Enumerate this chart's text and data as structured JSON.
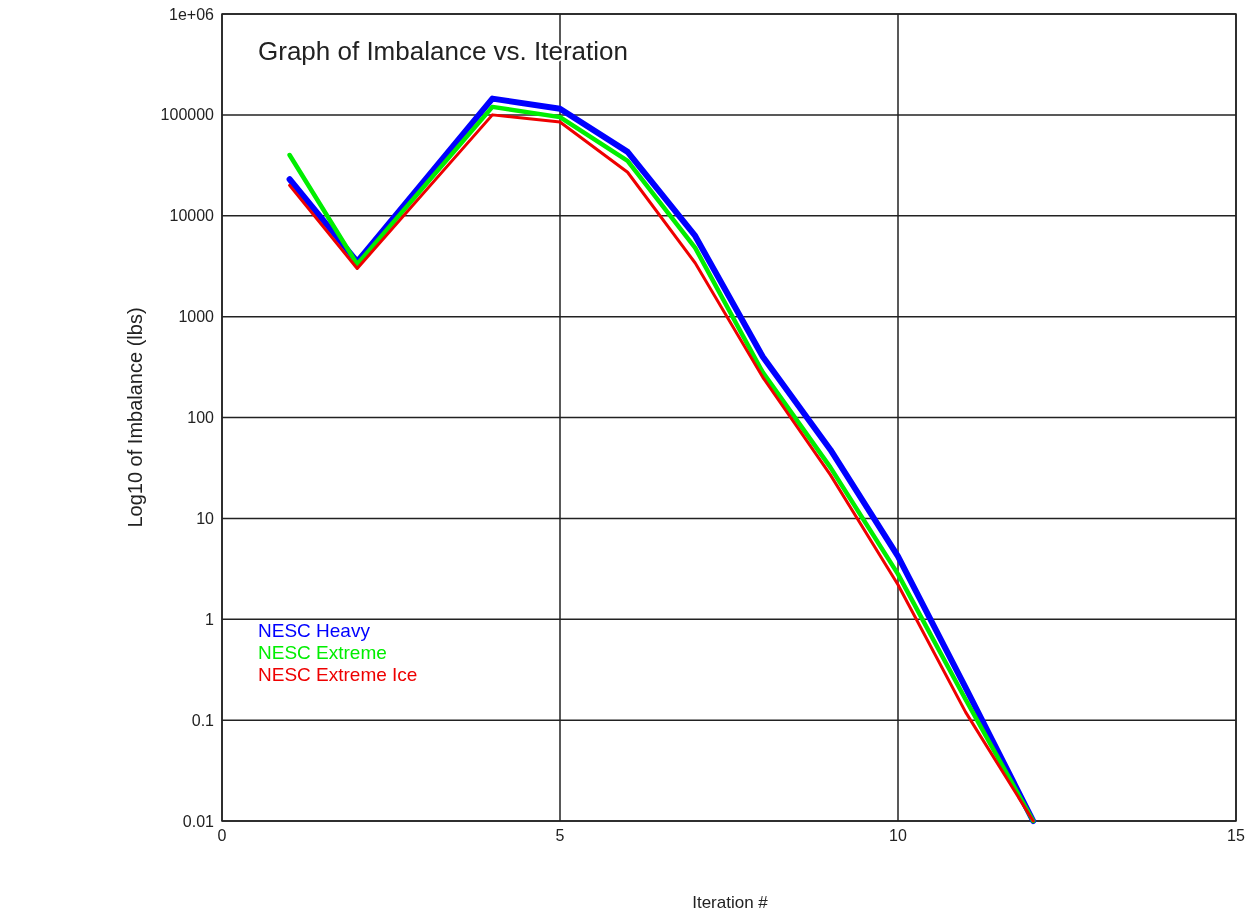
{
  "chart_data": {
    "type": "line",
    "title": "Graph of Imbalance vs. Iteration",
    "xlabel": "Iteration #",
    "ylabel": "Log10 of Imbalance (lbs)",
    "x": [
      1,
      2,
      4,
      5,
      6,
      7,
      8,
      9,
      10,
      11,
      12
    ],
    "series": [
      {
        "name": "NESC Heavy",
        "color": "#0000ff",
        "values": [
          23000,
          3500,
          145000,
          115000,
          43000,
          6300,
          400,
          48,
          4.2,
          0.21,
          0.01
        ]
      },
      {
        "name": "NESC Extreme",
        "color": "#00ee00",
        "values": [
          40000,
          3300,
          120000,
          95000,
          35000,
          4800,
          280,
          32,
          2.8,
          0.16,
          0.01
        ]
      },
      {
        "name": "NESC Extreme Ice",
        "color": "#ee0000",
        "values": [
          20000,
          3000,
          100000,
          85000,
          27000,
          3400,
          250,
          27,
          2.2,
          0.12,
          0.01
        ]
      }
    ],
    "xlim": [
      0,
      15
    ],
    "xticks": [
      0,
      5,
      10,
      15
    ],
    "ylim": [
      0.01,
      1000000
    ],
    "yticks": [
      0.01,
      0.1,
      1,
      10,
      100,
      1000,
      10000,
      100000,
      {
        "value": 1000000,
        "label": "1e+06"
      }
    ],
    "log": "y",
    "grid": true,
    "legend": "bottom left",
    "marker": "none",
    "line_style": "solid"
  }
}
